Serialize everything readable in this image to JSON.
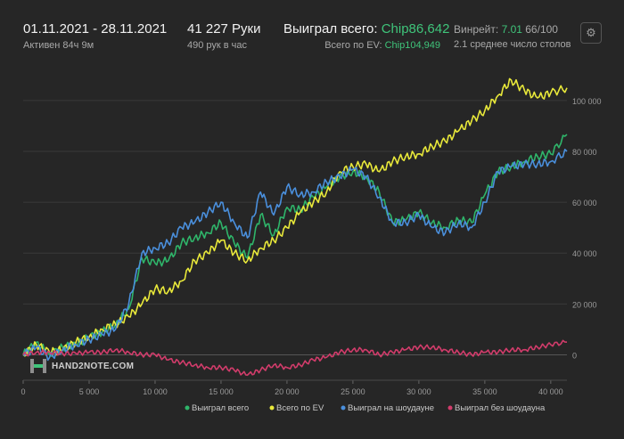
{
  "header": {
    "date_range": "01.11.2021 - 28.11.2021",
    "active": "Активен 84ч 9м",
    "hands": "41 227 Руки",
    "hands_per_hour": "490 рук в час",
    "won_label": "Выиграл всего: ",
    "won_value": "Chip86,642",
    "ev_label": "Всего по EV: ",
    "ev_value": "Chip104,949",
    "winrate_label": "Винрейт: ",
    "winrate_value": "7.01",
    "winrate_extra": " 66/100",
    "avg_tables": "2.1 среднее число столов"
  },
  "logo_text": "HAND2NOTE.COM",
  "icons": {
    "settings": "gear-icon"
  },
  "colors": {
    "background": "#262626",
    "won": "#2fb56a",
    "ev": "#e8e83a",
    "showdown": "#4a8fdc",
    "no_showdown": "#d23c6b",
    "accent": "#3fc47a"
  },
  "chart_data": {
    "type": "line",
    "xlim": [
      0,
      41227
    ],
    "ylim": [
      -10000,
      115000
    ],
    "x_ticks": [
      0,
      5000,
      10000,
      15000,
      20000,
      25000,
      30000,
      35000,
      40000
    ],
    "x_tick_labels": [
      "0",
      "5 000",
      "10 000",
      "15 000",
      "20 000",
      "25 000",
      "30 000",
      "35 000",
      "40 000"
    ],
    "y_ticks": [
      0,
      20000,
      40000,
      60000,
      80000,
      100000
    ],
    "y_tick_labels": [
      "0",
      "20 000",
      "40 000",
      "60 000",
      "80 000",
      "100 000"
    ],
    "grid": true,
    "legend_position": "bottom-right",
    "x": [
      0,
      1000,
      2000,
      3000,
      4000,
      5000,
      6000,
      7000,
      8000,
      9000,
      10000,
      11000,
      12000,
      13000,
      14000,
      15000,
      16000,
      17000,
      18000,
      19000,
      20000,
      21000,
      22000,
      23000,
      24000,
      25000,
      26000,
      27000,
      28000,
      29000,
      30000,
      31000,
      32000,
      33000,
      34000,
      35000,
      36000,
      37000,
      38000,
      39000,
      40000,
      41227
    ],
    "series": [
      {
        "name": "Выиграл всего",
        "color": "#2fb56a",
        "values": [
          0,
          5000,
          0,
          3000,
          4000,
          7000,
          9000,
          12000,
          18000,
          38000,
          36000,
          37000,
          44000,
          46000,
          48000,
          52000,
          44000,
          38000,
          55000,
          47000,
          58000,
          57000,
          62000,
          66000,
          70000,
          72000,
          70000,
          64000,
          52000,
          53000,
          56000,
          52000,
          50000,
          53000,
          52000,
          63000,
          72000,
          74000,
          76000,
          78000,
          79000,
          86642
        ]
      },
      {
        "name": "Всего по EV",
        "color": "#e8e83a",
        "values": [
          0,
          4000,
          1000,
          2000,
          5000,
          7000,
          10000,
          12000,
          15000,
          20000,
          26000,
          25000,
          29000,
          37000,
          40000,
          45000,
          40000,
          37000,
          42000,
          45000,
          50000,
          56000,
          60000,
          64000,
          72000,
          74000,
          75000,
          72000,
          76000,
          78000,
          79000,
          82000,
          84000,
          88000,
          92000,
          96000,
          102000,
          108000,
          104000,
          101000,
          103000,
          104949
        ]
      },
      {
        "name": "Выиграл на шоудауне",
        "color": "#4a8fdc",
        "values": [
          0,
          3000,
          -1000,
          2000,
          4000,
          6000,
          8000,
          10000,
          20000,
          40000,
          42000,
          44000,
          50000,
          52000,
          56000,
          60000,
          52000,
          46000,
          64000,
          55000,
          66000,
          63000,
          64000,
          68000,
          70000,
          73000,
          70000,
          62000,
          52000,
          52000,
          55000,
          50000,
          48000,
          52000,
          50000,
          60000,
          72000,
          74000,
          75000,
          75000,
          76000,
          80000
        ]
      },
      {
        "name": "Выиграл без шоудауна",
        "color": "#d23c6b",
        "values": [
          0,
          1000,
          1000,
          500,
          500,
          1000,
          1000,
          2000,
          1000,
          0,
          0,
          -2000,
          -3000,
          -4000,
          -5000,
          -5000,
          -6000,
          -8000,
          -6000,
          -4000,
          -5000,
          -4000,
          -2000,
          -1000,
          1000,
          2000,
          2000,
          0,
          1000,
          2000,
          3000,
          3000,
          2000,
          1000,
          0,
          1000,
          1000,
          2000,
          2000,
          3000,
          4000,
          5000
        ]
      }
    ]
  }
}
